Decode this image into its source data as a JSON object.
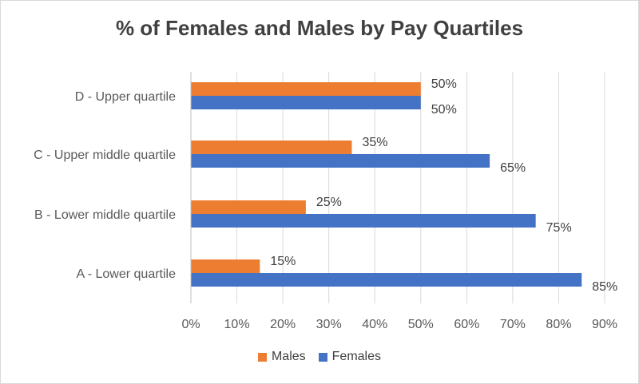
{
  "chart_data": {
    "type": "bar",
    "orientation": "horizontal",
    "title": "% of Females and Males by Pay Quartiles",
    "categories": [
      "D - Upper quartile",
      "C - Upper middle quartile",
      "B - Lower middle quartile",
      "A - Lower quartile"
    ],
    "series": [
      {
        "name": "Males",
        "color": "#ED7D31",
        "values": [
          50,
          35,
          25,
          15
        ],
        "labels": [
          "50%",
          "35%",
          "25%",
          "15%"
        ]
      },
      {
        "name": "Females",
        "color": "#4472C4",
        "values": [
          50,
          65,
          75,
          85
        ],
        "labels": [
          "50%",
          "65%",
          "75%",
          "85%"
        ]
      }
    ],
    "xlim": [
      0,
      90
    ],
    "xticks": [
      "0%",
      "10%",
      "20%",
      "30%",
      "40%",
      "50%",
      "60%",
      "70%",
      "80%",
      "90%"
    ],
    "grid": true,
    "legend_position": "bottom"
  }
}
